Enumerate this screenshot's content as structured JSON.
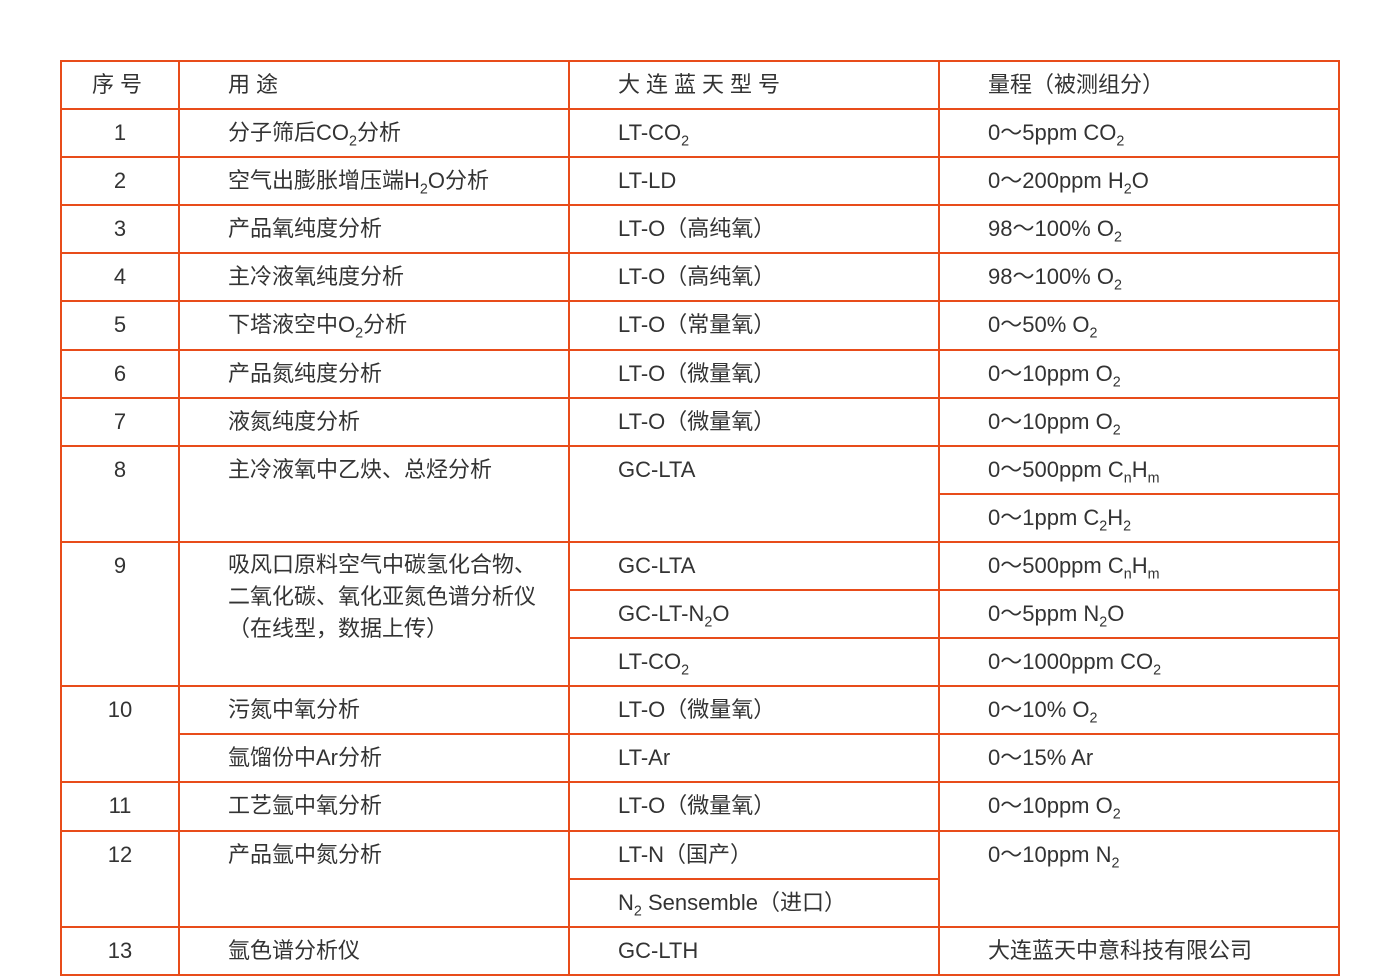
{
  "border_color": "#e84c1a",
  "text_color": "#333333",
  "background_color": "#ffffff",
  "font_size_pt": 17,
  "columns": {
    "seq": "序号",
    "use": "用途",
    "model": "大连蓝天型号",
    "range": "量程（被测组分）"
  },
  "rows": [
    {
      "seq": "1",
      "use": "分子筛后CO2分析",
      "model": "LT-CO2",
      "range": "0～5ppm  CO2"
    },
    {
      "seq": "2",
      "use": "空气出膨胀增压端H2O分析",
      "model": "LT-LD",
      "range": "0～200ppm  H2O"
    },
    {
      "seq": "3",
      "use": "产品氧纯度分析",
      "model": "LT-O（高纯氧）",
      "range": "98～100%  O2"
    },
    {
      "seq": "4",
      "use": "主冷液氧纯度分析",
      "model": "LT-O（高纯氧）",
      "range": "98～100%  O2"
    },
    {
      "seq": "5",
      "use": "下塔液空中O2分析",
      "model": "LT-O（常量氧）",
      "range": "0～50%  O2"
    },
    {
      "seq": "6",
      "use": "产品氮纯度分析",
      "model": "LT-O（微量氧）",
      "range": "0～10ppm  O2"
    },
    {
      "seq": "7",
      "use": "液氮纯度分析",
      "model": "LT-O（微量氧）",
      "range": "0～10ppm  O2"
    },
    {
      "seq": "8",
      "use": "主冷液氧中乙炔、总烃分析",
      "model": "GC-LTA",
      "range_lines": [
        "0～500ppm  CnHm",
        "0～1ppm  C2H2"
      ]
    },
    {
      "seq": "9",
      "use_lines": [
        "吸风口原料空气中碳氢化合物、",
        "二氧化碳、氧化亚氮色谱分析仪",
        "（在线型，数据上传）"
      ],
      "sub": [
        {
          "model": "GC-LTA",
          "range": "0～500ppm  CnHm"
        },
        {
          "model": "GC-LT-N2O",
          "range": "0～5ppm  N2O"
        },
        {
          "model": "LT-CO2",
          "range": "0～1000ppm  CO2"
        }
      ]
    },
    {
      "seq": "10",
      "sub": [
        {
          "use": "污氮中氧分析",
          "model": "LT-O（微量氧）",
          "range": "0～10%  O2"
        },
        {
          "use": "氩馏份中Ar分析",
          "model": "LT-Ar",
          "range": "0～15%  Ar"
        }
      ]
    },
    {
      "seq": "11",
      "use": "工艺氩中氧分析",
      "model": "LT-O（微量氧）",
      "range": "0～10ppm  O2"
    },
    {
      "seq": "12",
      "use": "产品氩中氮分析",
      "sub": [
        {
          "model": "LT-N（国产）",
          "range": "0～10ppm  N2"
        },
        {
          "model": "N2  Sensemble（进口）",
          "range": ""
        }
      ]
    },
    {
      "seq": "13",
      "use": "氩色谱分析仪",
      "model": "GC-LTH",
      "range": "大连蓝天中意科技有限公司"
    }
  ]
}
